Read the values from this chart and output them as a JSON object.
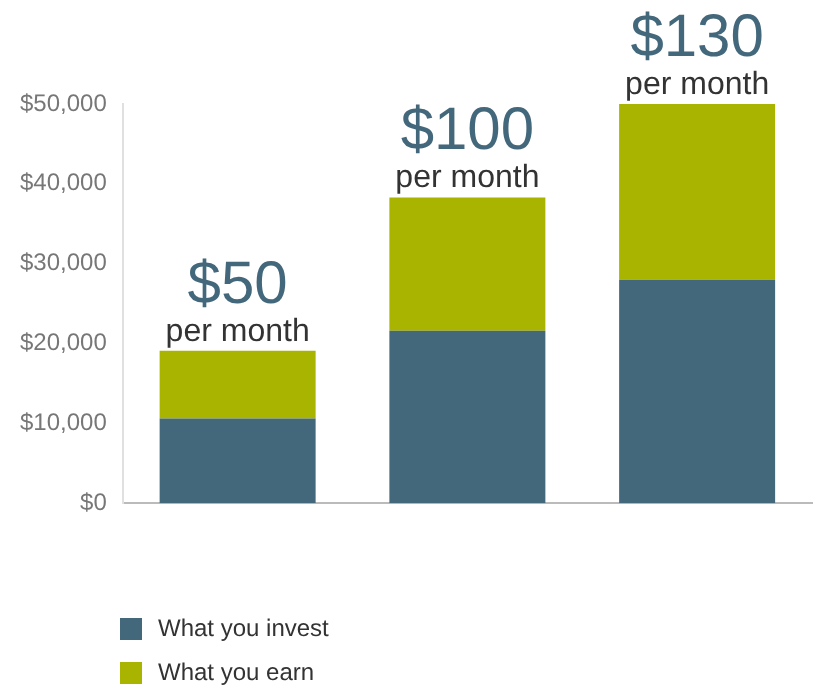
{
  "chart_data": {
    "type": "bar",
    "stacked": true,
    "categories": [
      null,
      null,
      null
    ],
    "series": [
      {
        "name": "What you invest",
        "color": "#44687b",
        "values": [
          10600,
          21600,
          28000
        ]
      },
      {
        "name": "What you earn",
        "color": "#a8b400",
        "values": [
          8500,
          16700,
          22000
        ]
      }
    ],
    "ylim": [
      0,
      50000
    ],
    "yticks": [
      {
        "value": 0,
        "label": "$0"
      },
      {
        "value": 10000,
        "label": "$10,000"
      },
      {
        "value": 20000,
        "label": "$20,000"
      },
      {
        "value": 30000,
        "label": "$30,000"
      },
      {
        "value": 40000,
        "label": "$40,000"
      },
      {
        "value": 50000,
        "label": "$50,000"
      }
    ],
    "annotations": [
      {
        "text": "$50",
        "y": 19100
      },
      {
        "text": "per month",
        "y": 19100
      },
      {
        "text": "$100",
        "y": 38300
      },
      {
        "text": "per month",
        "y": 38300
      },
      {
        "text": "$130",
        "y": 50000
      },
      {
        "text": "per month",
        "y": 50000
      }
    ],
    "grid": false,
    "legend": "bottom left"
  }
}
